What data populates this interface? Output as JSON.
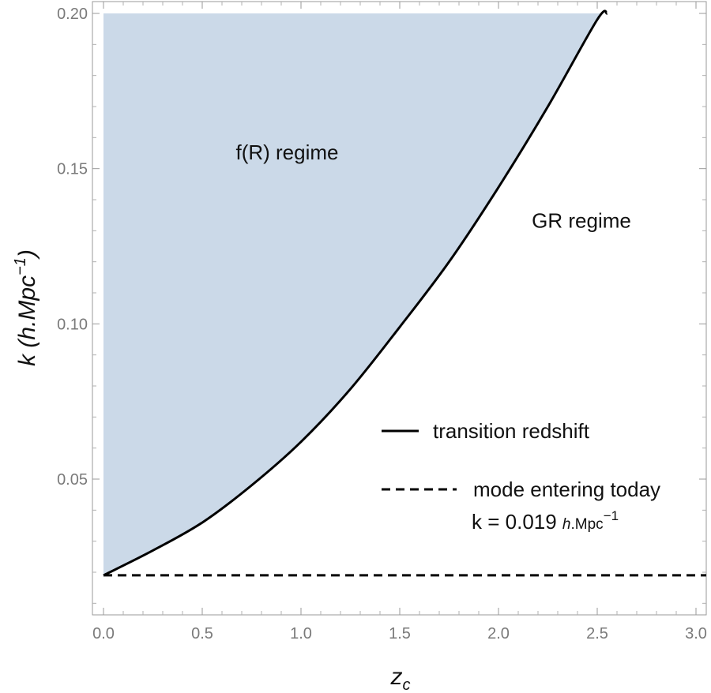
{
  "chart_data": {
    "type": "area",
    "xlabel": "z",
    "xlabel_sub": "c",
    "ylabel_main": "k",
    "ylabel_unit_prefix": "(h.Mpc",
    "ylabel_unit_sup": "−1",
    "ylabel_unit_suffix": ")",
    "xlim": [
      -0.05,
      3.05
    ],
    "ylim": [
      0.008,
      0.2
    ],
    "x_ticks": [
      0.0,
      0.5,
      1.0,
      1.5,
      2.0,
      2.5,
      3.0
    ],
    "x_tick_labels": [
      "0.0",
      "0.5",
      "1.0",
      "1.5",
      "2.0",
      "2.5",
      "3.0"
    ],
    "y_ticks": [
      0.05,
      0.1,
      0.15,
      0.2
    ],
    "y_tick_labels": [
      "0.05",
      "0.10",
      "0.15",
      "0.20"
    ],
    "grid": false,
    "legend_placement": "bottom-right",
    "fill_color": "#cbd9e8",
    "series": [
      {
        "name": "transition redshift",
        "style": "solid",
        "color": "#000000",
        "x": [
          0.0,
          0.25,
          0.5,
          0.75,
          1.0,
          1.25,
          1.5,
          1.75,
          2.0,
          2.25,
          2.5,
          2.55
        ],
        "y": [
          0.019,
          0.027,
          0.036,
          0.048,
          0.062,
          0.079,
          0.099,
          0.12,
          0.144,
          0.17,
          0.198,
          0.2
        ]
      },
      {
        "name": "mode entering today",
        "style": "dashed",
        "color": "#000000",
        "x": [
          0.0,
          3.05
        ],
        "y": [
          0.019,
          0.019
        ]
      }
    ],
    "legend_note": {
      "prefix": "k = 0.019 ",
      "italic": "h",
      "unit": ".Mpc",
      "sup": "−1"
    },
    "annotations": [
      {
        "text": "f(R) regime",
        "x": 0.93,
        "y": 0.153
      },
      {
        "text": "GR regime",
        "x": 2.42,
        "y": 0.131
      }
    ]
  }
}
